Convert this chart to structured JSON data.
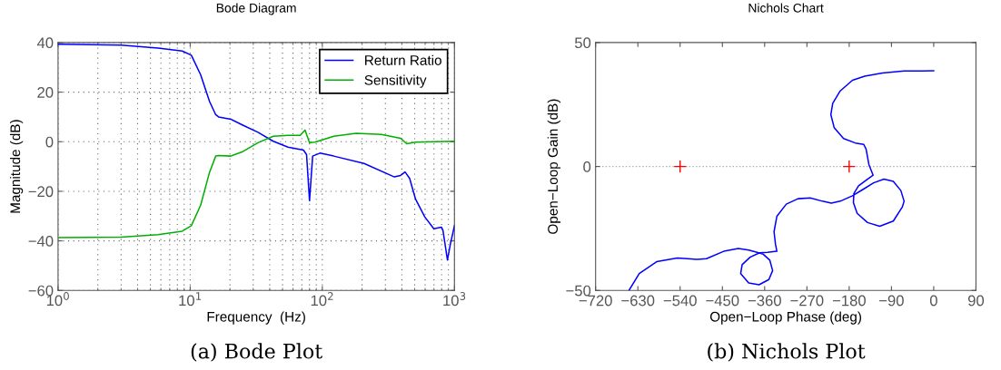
{
  "chart_data": [
    {
      "type": "line",
      "title": "Bode Diagram",
      "xlabel": "Frequency  (Hz)",
      "ylabel": "Magnitude (dB)",
      "log": "x",
      "grid": true,
      "legend": "top right",
      "line_style": "solid",
      "marker": "none",
      "xlim": [
        1,
        1000
      ],
      "xticks": [
        {
          "value": 1,
          "label": "10$^{0}$"
        },
        {
          "value": 10,
          "label": "10$^{1}$"
        },
        {
          "value": 100,
          "label": "10$^{2}$"
        },
        {
          "value": 1000,
          "label": "10$^{3}$"
        }
      ],
      "ylim": [
        -60,
        40
      ],
      "yticks": [
        {
          "value": -60,
          "label": "−60"
        },
        {
          "value": -40,
          "label": "−40"
        },
        {
          "value": -20,
          "label": "−20"
        },
        0,
        20,
        40
      ],
      "series": [
        {
          "name": "Return Ratio",
          "color": "#0000ff",
          "x": [
            1,
            3,
            5.7,
            8.7,
            10.2,
            12,
            14,
            15.6,
            16.4,
            20.3,
            25,
            32.6,
            42.5,
            55,
            72,
            76,
            80,
            84.5,
            96,
            122,
            207,
            351,
            391,
            423,
            458,
            508,
            596,
            698,
            797,
            818,
            885,
            933,
            1000
          ],
          "values": [
            39.3,
            39,
            37.8,
            36.6,
            34.9,
            27,
            16.3,
            10.9,
            10,
            9.1,
            6.7,
            3.8,
            0.2,
            -2.2,
            -3.4,
            -5.2,
            -23.8,
            -5.8,
            -4.6,
            -5.8,
            -8.8,
            -14.2,
            -13.6,
            -12.2,
            -14.8,
            -23.2,
            -30.3,
            -35.1,
            -34.5,
            -35.7,
            -47.7,
            -41.1,
            -33.9
          ]
        },
        {
          "name": "Sensitivity",
          "color": "#00b000",
          "x": [
            1,
            3,
            5.7,
            8.7,
            10.2,
            12,
            14,
            15.6,
            16.4,
            20.3,
            25,
            32.6,
            42.5,
            55,
            68,
            74,
            80,
            88,
            122,
            180,
            280,
            391,
            435,
            508,
            1000
          ],
          "values": [
            -38.7,
            -38.5,
            -37.5,
            -36.1,
            -33.9,
            -25.6,
            -12.4,
            -5.8,
            -5.6,
            -5.8,
            -4,
            -0.4,
            2.2,
            2.6,
            2.6,
            4.7,
            -0.4,
            -0.2,
            2.2,
            3.4,
            2.9,
            1.4,
            -0.8,
            -0.2,
            0.2
          ]
        }
      ],
      "annotations": [
        "(a) Bode Plot"
      ]
    },
    {
      "type": "line",
      "title": "Nichols Chart",
      "xlabel": "Open−Loop Phase (deg)",
      "ylabel": "Open−Loop Gain (dB)",
      "grid": false,
      "line_style": "solid",
      "marker": "none",
      "xlim": [
        -720,
        90
      ],
      "xticks": [
        {
          "value": -720,
          "label": "−720"
        },
        {
          "value": -630,
          "label": "−630"
        },
        {
          "value": -540,
          "label": "−540"
        },
        {
          "value": -450,
          "label": "−450"
        },
        {
          "value": -360,
          "label": "−360"
        },
        {
          "value": -270,
          "label": "−270"
        },
        {
          "value": -180,
          "label": "−180"
        },
        {
          "value": -90,
          "label": "−90"
        },
        0,
        90
      ],
      "ylim": [
        -50,
        50
      ],
      "yticks": [
        {
          "value": -50,
          "label": "−50"
        },
        0,
        50
      ],
      "ref_lines": [
        {
          "axis": "y",
          "value": 0,
          "color": "#aaaaaa",
          "line_style": "dotted"
        }
      ],
      "series": [
        {
          "color": "#0000ff",
          "x": [
            0,
            -63,
            -109,
            -147,
            -173,
            -199,
            -215,
            -219,
            -212,
            -192,
            -167,
            -149,
            -144,
            -138,
            -129,
            -141,
            -160,
            -170,
            -171,
            -163,
            -141,
            -115,
            -86,
            -67,
            -63,
            -70,
            -86,
            -106,
            -128,
            -151,
            -173,
            -199,
            -218,
            -237,
            -263,
            -289,
            -314,
            -334,
            -340,
            -337,
            -334,
            -354,
            -371,
            -391,
            -408,
            -411,
            -394,
            -372,
            -351,
            -343,
            -349,
            -363,
            -376,
            -394,
            -416,
            -447,
            -484,
            -503,
            -546,
            -590,
            -627,
            -649
          ],
          "values": [
            38.6,
            38.5,
            37.7,
            36.4,
            34.8,
            30.5,
            25.5,
            20.9,
            15.7,
            11.3,
            9.5,
            8.9,
            7,
            0.8,
            -3.5,
            -5.1,
            -7.8,
            -10.9,
            -14.6,
            -18.9,
            -22.6,
            -24.1,
            -22,
            -16.4,
            -14,
            -9.7,
            -6,
            -5.1,
            -6.6,
            -9.3,
            -11.8,
            -14,
            -14.8,
            -14,
            -12.7,
            -13,
            -15.2,
            -20.1,
            -26.3,
            -31.3,
            -34.2,
            -34.6,
            -34.8,
            -36.6,
            -39.6,
            -43.2,
            -47,
            -47.7,
            -45.6,
            -42,
            -37.8,
            -35.4,
            -34.6,
            -33.7,
            -33.1,
            -34.2,
            -37.2,
            -37.5,
            -36.9,
            -38.4,
            -43.2,
            -50
          ]
        },
        {
          "type": "scatter",
          "color": "#ff0000",
          "marker": "cross",
          "x": [
            -540,
            -180
          ],
          "values": [
            0,
            0
          ]
        }
      ],
      "annotations": [
        "(b) Nichols Plot"
      ]
    }
  ]
}
